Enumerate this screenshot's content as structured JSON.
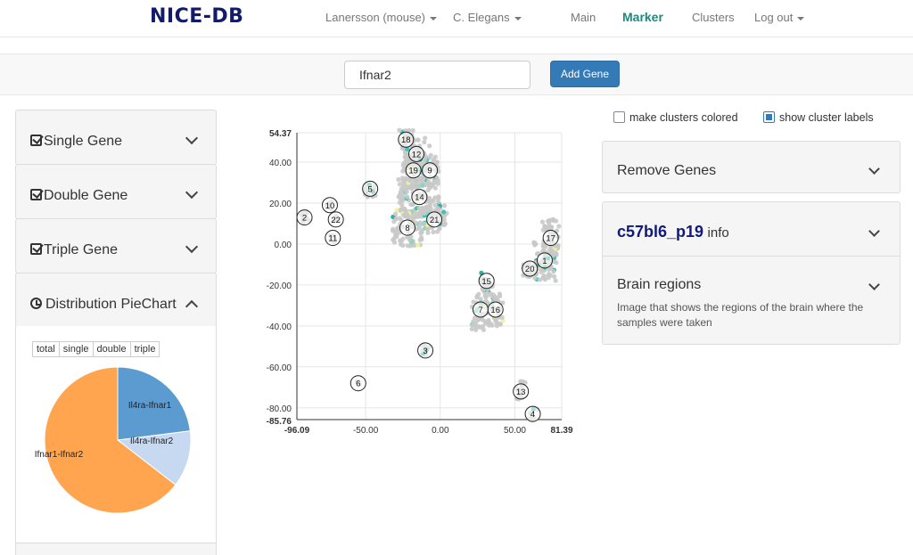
{
  "nav": {
    "brand": "NICE-DB",
    "dataset": "Lanersson (mouse)",
    "species": "C. Elegans",
    "main": "Main",
    "marker": "Marker",
    "clusters": "Clusters",
    "logout": "Log out"
  },
  "search": {
    "value": "Ifnar2",
    "add_label": "Add Gene"
  },
  "left_panels": {
    "single": "Single Gene",
    "double": "Double Gene",
    "triple": "Triple Gene",
    "pie": "Distribution PieChart"
  },
  "pie": {
    "tabs": [
      "total",
      "single",
      "double",
      "triple"
    ],
    "slices": [
      {
        "label": "Il4ra-Ifnar1",
        "fraction": 0.23,
        "color": "#5b9bd0"
      },
      {
        "label": "Il4ra-Ifnar2",
        "fraction": 0.125,
        "color": "#c6d9f0"
      },
      {
        "label": "Ifnar1-Ifnar2",
        "fraction": 0.645,
        "color": "#ffa54f"
      }
    ]
  },
  "scatter": {
    "x_ticks": [
      "-96.09",
      "-50.00",
      "0.00",
      "50.00",
      "81.39"
    ],
    "y_ticks": [
      "54.37",
      "40.00",
      "20.00",
      "0.00",
      "-20.00",
      "-40.00",
      "-60.00",
      "-80.00",
      "-85.76"
    ],
    "xlim": [
      -96.09,
      81.39
    ],
    "ylim": [
      -85.76,
      54.37
    ],
    "clusters": [
      {
        "id": "1",
        "x": 70,
        "y": -8
      },
      {
        "id": "2",
        "x": -91,
        "y": 13
      },
      {
        "id": "3",
        "x": -10,
        "y": -52
      },
      {
        "id": "4",
        "x": 62,
        "y": -83
      },
      {
        "id": "5",
        "x": -47,
        "y": 27
      },
      {
        "id": "6",
        "x": -55,
        "y": -68
      },
      {
        "id": "7",
        "x": 27,
        "y": -32
      },
      {
        "id": "8",
        "x": -22,
        "y": 8
      },
      {
        "id": "9",
        "x": -7,
        "y": 36
      },
      {
        "id": "10",
        "x": -74,
        "y": 19
      },
      {
        "id": "11",
        "x": -72,
        "y": 3
      },
      {
        "id": "12",
        "x": -16,
        "y": 44
      },
      {
        "id": "13",
        "x": 54,
        "y": -72
      },
      {
        "id": "14",
        "x": -14,
        "y": 23
      },
      {
        "id": "15",
        "x": 31,
        "y": -18
      },
      {
        "id": "16",
        "x": 37,
        "y": -32
      },
      {
        "id": "17",
        "x": 74,
        "y": 3
      },
      {
        "id": "18",
        "x": -23,
        "y": 51
      },
      {
        "id": "19",
        "x": -18,
        "y": 36
      },
      {
        "id": "20",
        "x": 60,
        "y": -12
      },
      {
        "id": "21",
        "x": -4,
        "y": 12
      },
      {
        "id": "22",
        "x": -70,
        "y": 12
      }
    ]
  },
  "options": {
    "colored": "make clusters colored",
    "labels": "show cluster labels"
  },
  "right_panels": {
    "remove": "Remove Genes",
    "sample_name": "c57bl6_p19",
    "sample_suffix": "info",
    "regions_title": "Brain regions",
    "regions_desc": "Image that shows the regions of the brain where the samples were taken"
  }
}
